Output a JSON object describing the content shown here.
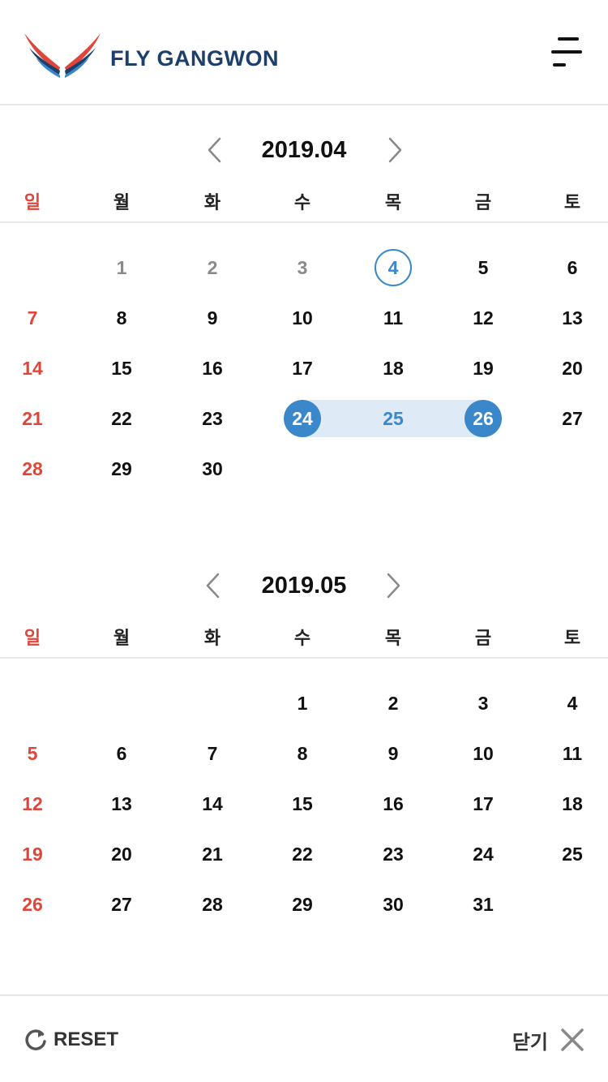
{
  "header": {
    "brand": "FLY GANGWON",
    "colors": {
      "brand_navy": "#1d3f6b",
      "brand_red": "#e0453a",
      "brand_blue": "#3a87c9"
    }
  },
  "weekdays": [
    "일",
    "월",
    "화",
    "수",
    "목",
    "금",
    "토"
  ],
  "months": [
    {
      "title": "2019.04",
      "start_weekday": 1,
      "days_in_month": 30,
      "past_days": [
        1,
        2,
        3
      ],
      "today": 4,
      "range_start": 24,
      "range_end": 26
    },
    {
      "title": "2019.05",
      "start_weekday": 3,
      "days_in_month": 31,
      "past_days": [],
      "today": null,
      "range_start": null,
      "range_end": null
    }
  ],
  "footer": {
    "reset_label": "RESET",
    "close_label": "닫기"
  },
  "icons": {
    "logo": "wings-logo-icon",
    "menu": "menu-icon",
    "prev": "chevron-left-icon",
    "next": "chevron-right-icon",
    "reset": "refresh-icon",
    "close": "close-icon"
  }
}
